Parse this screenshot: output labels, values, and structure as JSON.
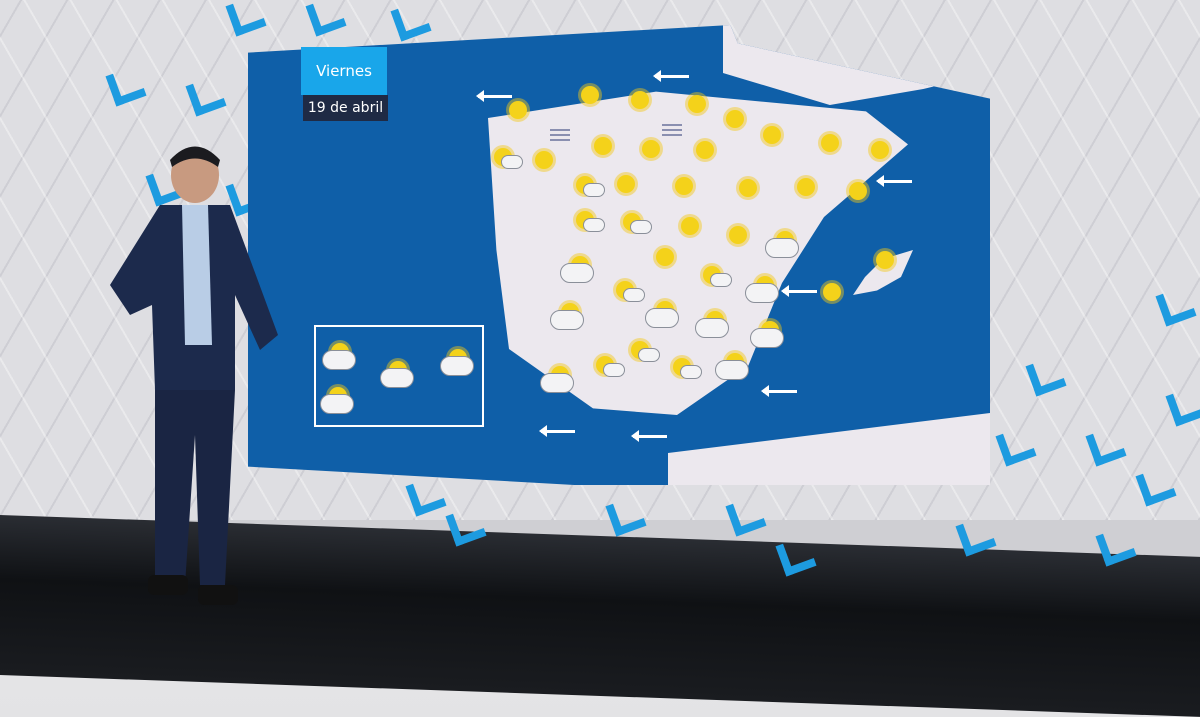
{
  "forecast": {
    "day": "Viernes",
    "date": "19 de abril"
  },
  "colors": {
    "sea": "#0f5fa8",
    "land": "#ece8ee",
    "title_bg": "#19a6ea",
    "date_bg": "#1f2a44",
    "sun": "#f4d21a",
    "accent_chevrons": "#1d9be0"
  },
  "map_icons": [
    "sun",
    "sun",
    "sun",
    "sun",
    "sun",
    "sun",
    "sun",
    "sun",
    "fog",
    "fog",
    "sun-cloud",
    "sun",
    "sun",
    "sun",
    "sun",
    "sun",
    "sun-cloud",
    "sun",
    "sun",
    "sun",
    "sun",
    "sun",
    "sun-cloud",
    "sun-cloud",
    "sun",
    "sun",
    "cloud-sun",
    "cloud-sun-rain",
    "sun-cloud",
    "sun-cloud",
    "cloud-sun-rain",
    "cloud-sun-rain",
    "cloud-sun",
    "sun",
    "cloud-sun",
    "cloud-sun",
    "cloud-sun",
    "sun-cloud",
    "sun-cloud",
    "cloud-sun",
    "sun-cloud",
    "sun",
    "wind-arrow",
    "wind-arrow",
    "wind-arrow",
    "wind-arrow",
    "wind-arrow",
    "wind-arrow",
    "wind-arrow"
  ]
}
